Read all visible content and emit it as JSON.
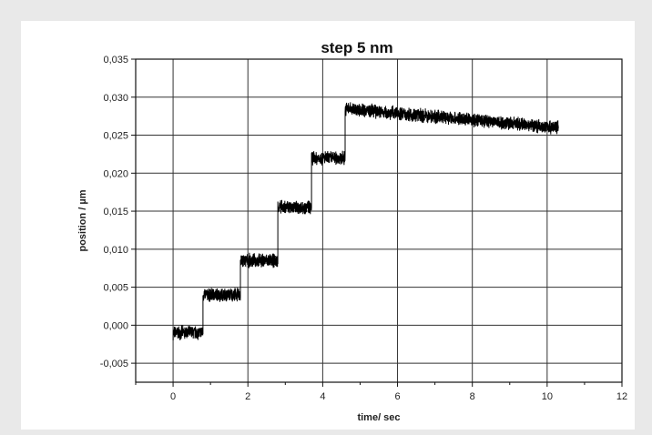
{
  "chart_data": {
    "type": "line",
    "title": "step 5 nm",
    "xlabel": "time/ sec",
    "ylabel": "position / µm",
    "xlim": [
      -1,
      12
    ],
    "ylim": [
      -0.0075,
      0.035
    ],
    "x_ticks": [
      "0",
      "2",
      "4",
      "6",
      "8",
      "10",
      "12"
    ],
    "y_ticks": [
      "0,035",
      "0,030",
      "0,025",
      "0,020",
      "0,015",
      "0,010",
      "0,005",
      "0,000",
      "-0,005"
    ],
    "grid": true,
    "series": [
      {
        "color": "#000000",
        "noise_amplitude": 0.0008,
        "steps": [
          {
            "x_start": 0.0,
            "x_end": 0.8,
            "y": -0.001
          },
          {
            "x_start": 0.8,
            "x_end": 1.8,
            "y": 0.004
          },
          {
            "x_start": 1.8,
            "x_end": 2.8,
            "y": 0.0085
          },
          {
            "x_start": 2.8,
            "x_end": 3.7,
            "y": 0.0155
          },
          {
            "x_start": 3.7,
            "x_end": 4.6,
            "y": 0.022
          },
          {
            "x_start": 4.6,
            "x_end": 10.3,
            "y_start": 0.0285,
            "y_end": 0.026
          }
        ]
      }
    ]
  }
}
